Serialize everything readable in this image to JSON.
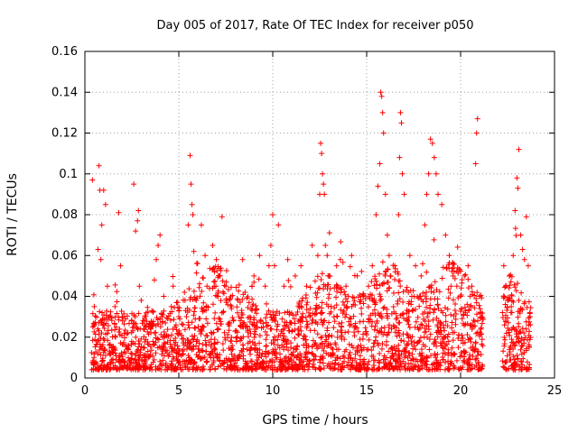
{
  "chart_data": {
    "type": "scatter",
    "title": "Day 005 of 2017, Rate Of TEC Index for receiver p050",
    "xlabel": "GPS time / hours",
    "ylabel": "ROTI / TECUs",
    "xlim": [
      0,
      25
    ],
    "ylim": [
      0,
      0.16
    ],
    "xticks": [
      0,
      5,
      10,
      15,
      20,
      25
    ],
    "yticks": [
      0,
      0.02,
      0.04,
      0.06,
      0.08,
      0.1,
      0.12,
      0.14,
      0.16
    ],
    "xtick_labels": [
      "0",
      "5",
      "10",
      "15",
      "20",
      "25"
    ],
    "ytick_labels": [
      "0",
      "0.02",
      "0.04",
      "0.06",
      "0.08",
      "0.1",
      "0.12",
      "0.14",
      "0.16"
    ],
    "grid": true,
    "marker": "plus",
    "series_color": "#ff0000",
    "data_gap_hours": [
      21.2,
      22.2
    ],
    "series": [
      {
        "x": [
          0.4,
          0.5,
          0.7,
          0.75,
          0.8,
          0.85,
          0.9,
          1.0,
          1.1,
          1.2,
          1.6,
          1.8,
          1.9,
          2.0,
          2.6,
          2.7,
          2.8,
          2.85,
          2.9,
          3.0,
          3.1,
          3.4,
          3.7,
          3.8,
          3.9,
          4.0,
          4.1,
          4.2,
          4.6,
          4.7,
          4.8,
          5.0,
          5.3,
          5.5,
          5.6,
          5.65,
          5.7,
          5.75,
          5.8,
          6.0,
          6.2,
          6.4,
          6.5,
          6.8,
          7.0,
          7.1,
          7.2,
          7.3,
          7.5,
          7.8,
          8.2,
          8.4,
          8.6,
          8.9,
          9.0,
          9.3,
          9.6,
          9.8,
          9.9,
          10.0,
          10.1,
          10.3,
          10.6,
          10.8,
          11.2,
          11.5,
          11.8,
          12.1,
          12.4,
          12.5,
          12.55,
          12.6,
          12.65,
          12.7,
          12.75,
          12.8,
          12.9,
          13.0,
          13.4,
          13.6,
          13.9,
          14.2,
          14.5,
          14.8,
          15.1,
          15.3,
          15.5,
          15.6,
          15.7,
          15.75,
          15.8,
          15.85,
          15.9,
          16.0,
          16.1,
          16.2,
          16.5,
          16.7,
          16.75,
          16.8,
          16.85,
          16.9,
          17.0,
          17.3,
          17.6,
          17.9,
          18.1,
          18.2,
          18.3,
          18.4,
          18.5,
          18.6,
          18.7,
          18.8,
          19.0,
          19.2,
          19.4,
          19.6,
          19.8,
          20.0,
          20.2,
          20.4,
          20.6,
          20.8,
          20.85,
          20.9,
          21.0,
          22.3,
          22.4,
          22.5,
          22.6,
          22.7,
          22.8,
          22.9,
          23.0,
          23.05,
          23.1,
          23.2,
          23.3,
          23.4,
          23.5,
          23.6,
          23.7
        ],
        "y": [
          0.097,
          0.035,
          0.063,
          0.104,
          0.092,
          0.058,
          0.075,
          0.092,
          0.085,
          0.045,
          0.035,
          0.081,
          0.055,
          0.03,
          0.095,
          0.072,
          0.077,
          0.082,
          0.045,
          0.038,
          0.028,
          0.025,
          0.048,
          0.058,
          0.065,
          0.07,
          0.03,
          0.04,
          0.035,
          0.045,
          0.025,
          0.03,
          0.042,
          0.075,
          0.109,
          0.095,
          0.085,
          0.08,
          0.062,
          0.056,
          0.075,
          0.06,
          0.045,
          0.065,
          0.058,
          0.04,
          0.05,
          0.079,
          0.045,
          0.035,
          0.03,
          0.058,
          0.025,
          0.045,
          0.05,
          0.06,
          0.045,
          0.055,
          0.065,
          0.08,
          0.055,
          0.075,
          0.045,
          0.058,
          0.05,
          0.055,
          0.045,
          0.065,
          0.06,
          0.09,
          0.115,
          0.11,
          0.1,
          0.095,
          0.09,
          0.065,
          0.06,
          0.05,
          0.055,
          0.058,
          0.045,
          0.06,
          0.05,
          0.04,
          0.045,
          0.055,
          0.08,
          0.094,
          0.105,
          0.14,
          0.138,
          0.13,
          0.12,
          0.09,
          0.07,
          0.06,
          0.055,
          0.08,
          0.108,
          0.13,
          0.125,
          0.1,
          0.09,
          0.06,
          0.055,
          0.05,
          0.075,
          0.09,
          0.1,
          0.117,
          0.115,
          0.108,
          0.1,
          0.09,
          0.085,
          0.07,
          0.06,
          0.05,
          0.045,
          0.04,
          0.05,
          0.055,
          0.045,
          0.105,
          0.12,
          0.127,
          0.04,
          0.055,
          0.045,
          0.038,
          0.05,
          0.035,
          0.06,
          0.082,
          0.098,
          0.093,
          0.112,
          0.07,
          0.063,
          0.058,
          0.079,
          0.055,
          0.03
        ]
      }
    ]
  }
}
